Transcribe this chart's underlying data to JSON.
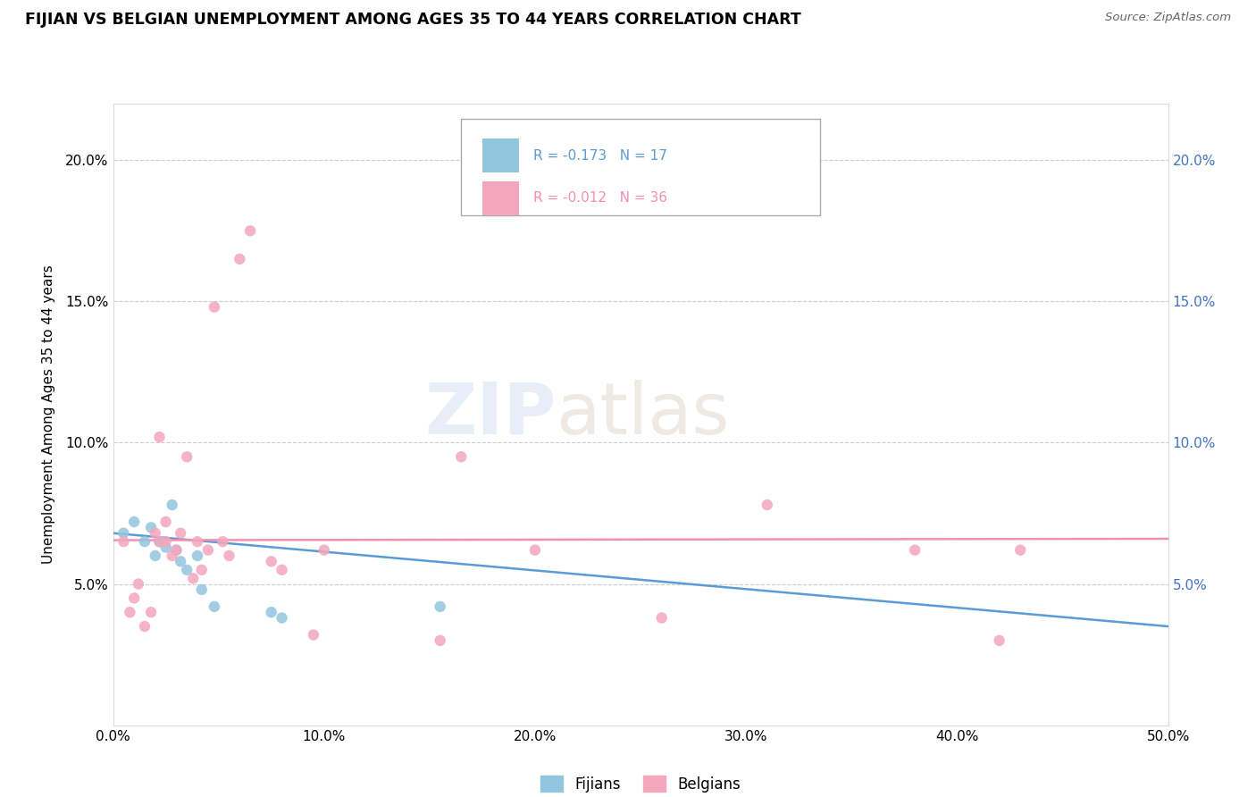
{
  "title": "FIJIAN VS BELGIAN UNEMPLOYMENT AMONG AGES 35 TO 44 YEARS CORRELATION CHART",
  "source_text": "Source: ZipAtlas.com",
  "ylabel": "Unemployment Among Ages 35 to 44 years",
  "xlim": [
    0.0,
    0.5
  ],
  "ylim": [
    0.0,
    0.22
  ],
  "xticks": [
    0.0,
    0.1,
    0.2,
    0.3,
    0.4,
    0.5
  ],
  "xticklabels": [
    "0.0%",
    "10.0%",
    "20.0%",
    "30.0%",
    "40.0%",
    "50.0%"
  ],
  "yticks": [
    0.0,
    0.05,
    0.1,
    0.15,
    0.2
  ],
  "yticklabels_left": [
    "",
    "5.0%",
    "10.0%",
    "15.0%",
    "20.0%"
  ],
  "yticklabels_right": [
    "",
    "5.0%",
    "10.0%",
    "15.0%",
    "20.0%"
  ],
  "fijian_color": "#92c5de",
  "belgian_color": "#f4a6bd",
  "fijian_line_color": "#5b9bd5",
  "belgian_line_color": "#f48fb1",
  "legend_fijian_R": "R = -0.173",
  "legend_fijian_N": "N = 17",
  "legend_belgian_R": "R = -0.012",
  "legend_belgian_N": "N = 36",
  "right_axis_color": "#4472c4",
  "fijian_x": [
    0.005,
    0.01,
    0.015,
    0.018,
    0.02,
    0.022,
    0.025,
    0.028,
    0.03,
    0.032,
    0.035,
    0.04,
    0.042,
    0.048,
    0.075,
    0.08,
    0.155
  ],
  "fijian_y": [
    0.068,
    0.072,
    0.065,
    0.07,
    0.06,
    0.065,
    0.063,
    0.078,
    0.062,
    0.058,
    0.055,
    0.06,
    0.048,
    0.042,
    0.04,
    0.038,
    0.042
  ],
  "belgian_x": [
    0.005,
    0.008,
    0.01,
    0.012,
    0.015,
    0.018,
    0.02,
    0.022,
    0.022,
    0.025,
    0.025,
    0.028,
    0.03,
    0.032,
    0.035,
    0.038,
    0.04,
    0.042,
    0.045,
    0.048,
    0.052,
    0.055,
    0.06,
    0.065,
    0.075,
    0.08,
    0.095,
    0.1,
    0.155,
    0.165,
    0.2,
    0.26,
    0.31,
    0.38,
    0.42,
    0.43
  ],
  "belgian_y": [
    0.065,
    0.04,
    0.045,
    0.05,
    0.035,
    0.04,
    0.068,
    0.065,
    0.102,
    0.072,
    0.065,
    0.06,
    0.062,
    0.068,
    0.095,
    0.052,
    0.065,
    0.055,
    0.062,
    0.148,
    0.065,
    0.06,
    0.165,
    0.175,
    0.058,
    0.055,
    0.032,
    0.062,
    0.03,
    0.095,
    0.062,
    0.038,
    0.078,
    0.062,
    0.03,
    0.062
  ],
  "watermark_zip": "ZIP",
  "watermark_atlas": "atlas",
  "fijian_trend_start_y": 0.068,
  "fijian_trend_end_y": 0.035,
  "belgian_trend_start_y": 0.0655,
  "belgian_trend_end_y": 0.066
}
